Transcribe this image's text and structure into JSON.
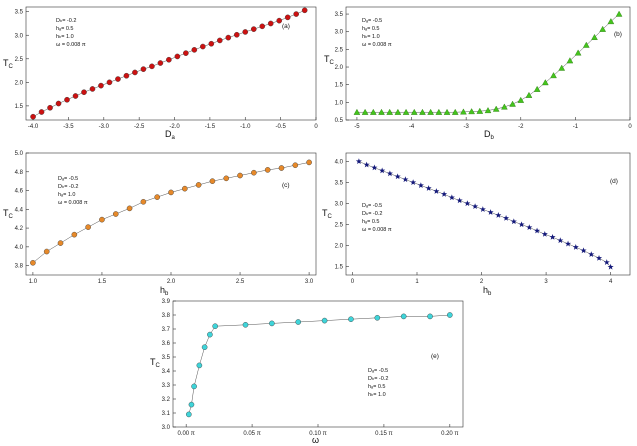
{
  "chart_data": [
    {
      "type": "scatter",
      "panel_label": "(a)",
      "marker": "circle",
      "color": "#cc1111",
      "xlabel": "D",
      "xlabel_sub": "a",
      "ylabel": "T",
      "ylabel_sub": "C",
      "xlim": [
        -4.1,
        0.0
      ],
      "ylim": [
        1.2,
        3.6
      ],
      "xticks": [
        -4.0,
        -3.5,
        -3.0,
        -2.5,
        -2.0,
        -1.5,
        -1.0,
        -0.5,
        0.0
      ],
      "xtick_labels": [
        "-4.0",
        "-3.5",
        "-3.0",
        "-2.5",
        "-2.0",
        "-1.5",
        "-1.0",
        "-0.5",
        "0"
      ],
      "yticks": [
        1.5,
        2.0,
        2.5,
        3.0,
        3.5
      ],
      "ytick_labels": [
        "1.5",
        "2.0",
        "2.5",
        "3.0",
        "3.5"
      ],
      "annotations": [
        "Dₕ= -0.2",
        "hₐ= 0.5",
        "hₕ= 1.0",
        "ω = 0.008 π"
      ],
      "x": [
        -4.0,
        -3.88,
        -3.76,
        -3.64,
        -3.52,
        -3.4,
        -3.28,
        -3.16,
        -3.04,
        -2.92,
        -2.8,
        -2.68,
        -2.56,
        -2.44,
        -2.32,
        -2.2,
        -2.08,
        -1.96,
        -1.84,
        -1.72,
        -1.6,
        -1.48,
        -1.36,
        -1.24,
        -1.12,
        -1.0,
        -0.88,
        -0.76,
        -0.64,
        -0.52,
        -0.4,
        -0.28,
        -0.16
      ],
      "y": [
        1.27,
        1.37,
        1.46,
        1.55,
        1.63,
        1.71,
        1.79,
        1.86,
        1.93,
        2.0,
        2.07,
        2.14,
        2.21,
        2.28,
        2.34,
        2.41,
        2.48,
        2.55,
        2.62,
        2.69,
        2.76,
        2.82,
        2.89,
        2.95,
        3.01,
        3.07,
        3.13,
        3.19,
        3.25,
        3.31,
        3.38,
        3.45,
        3.53
      ]
    },
    {
      "type": "scatter",
      "panel_label": "(b)",
      "marker": "triangle",
      "color": "#44c41c",
      "xlabel": "D",
      "xlabel_sub": "b",
      "ylabel": "T",
      "ylabel_sub": "C",
      "xlim": [
        -5.2,
        0.0
      ],
      "ylim": [
        0.5,
        3.7
      ],
      "xticks": [
        -5,
        -4,
        -3,
        -2,
        -1,
        0
      ],
      "xtick_labels": [
        "-5",
        "-4",
        "-3",
        "-2",
        "-1",
        "0"
      ],
      "yticks": [
        0.5,
        1.0,
        1.5,
        2.0,
        2.5,
        3.0,
        3.5
      ],
      "ytick_labels": [
        "0.5",
        "1.0",
        "1.5",
        "2.0",
        "2.5",
        "3.0",
        "3.5"
      ],
      "annotations": [
        "Dₐ= -0.5",
        "hₐ= 0.5",
        "hₕ= 1.0",
        "ω = 0.008 π"
      ],
      "x": [
        -5.0,
        -4.85,
        -4.7,
        -4.55,
        -4.4,
        -4.25,
        -4.1,
        -3.95,
        -3.8,
        -3.65,
        -3.5,
        -3.35,
        -3.2,
        -3.05,
        -2.9,
        -2.75,
        -2.6,
        -2.45,
        -2.3,
        -2.15,
        -2.0,
        -1.85,
        -1.7,
        -1.55,
        -1.4,
        -1.25,
        -1.1,
        -0.95,
        -0.8,
        -0.65,
        -0.5,
        -0.35,
        -0.2
      ],
      "y": [
        0.72,
        0.72,
        0.72,
        0.72,
        0.72,
        0.72,
        0.72,
        0.72,
        0.72,
        0.72,
        0.72,
        0.72,
        0.72,
        0.73,
        0.74,
        0.75,
        0.77,
        0.81,
        0.87,
        0.95,
        1.06,
        1.2,
        1.37,
        1.56,
        1.76,
        1.97,
        2.18,
        2.4,
        2.62,
        2.84,
        3.07,
        3.29,
        3.5
      ]
    },
    {
      "type": "scatter",
      "panel_label": "(c)",
      "marker": "circle",
      "color": "#e6892a",
      "xlabel": "h",
      "xlabel_sub": "b",
      "ylabel": "T",
      "ylabel_sub": "C",
      "xlim": [
        0.95,
        3.05
      ],
      "ylim": [
        3.7,
        5.0
      ],
      "xticks": [
        1.0,
        1.5,
        2.0,
        2.5,
        3.0
      ],
      "xtick_labels": [
        "1.0",
        "1.5",
        "2.0",
        "2.5",
        "3.0"
      ],
      "yticks": [
        3.8,
        4.0,
        4.2,
        4.4,
        4.6,
        4.8,
        5.0
      ],
      "ytick_labels": [
        "3.8",
        "4.0",
        "4.2",
        "4.4",
        "4.6",
        "4.8",
        "5.0"
      ],
      "annotations": [
        "Dₐ= -0.5",
        "Dₕ= -0.2",
        "hₐ= 1.0",
        "ω = 0.008 π"
      ],
      "x": [
        1.0,
        1.1,
        1.2,
        1.3,
        1.4,
        1.5,
        1.6,
        1.7,
        1.8,
        1.9,
        2.0,
        2.1,
        2.2,
        2.3,
        2.4,
        2.5,
        2.6,
        2.7,
        2.8,
        2.9,
        3.0
      ],
      "y": [
        3.83,
        3.95,
        4.04,
        4.13,
        4.21,
        4.29,
        4.35,
        4.41,
        4.48,
        4.53,
        4.58,
        4.62,
        4.66,
        4.7,
        4.73,
        4.76,
        4.79,
        4.82,
        4.84,
        4.87,
        4.9
      ]
    },
    {
      "type": "scatter",
      "panel_label": "(d)",
      "marker": "star",
      "color": "#14197a",
      "xlabel": "h",
      "xlabel_sub": "b",
      "ylabel": "T",
      "ylabel_sub": "C",
      "xlim": [
        -0.1,
        4.3
      ],
      "ylim": [
        1.3,
        4.2
      ],
      "xticks": [
        0,
        1,
        2,
        3,
        4
      ],
      "xtick_labels": [
        "0",
        "1",
        "2",
        "3",
        "4"
      ],
      "yticks": [
        1.5,
        2.0,
        2.5,
        3.0,
        3.5,
        4.0
      ],
      "ytick_labels": [
        "1.5",
        "2.0",
        "2.5",
        "3.0",
        "3.5",
        "4.0"
      ],
      "annotations": [
        "Dₐ= -0.5",
        "Dₕ= -0.2",
        "hₐ= 0.5",
        "ω = 0.008 π"
      ],
      "x": [
        0.1,
        0.22,
        0.34,
        0.46,
        0.58,
        0.7,
        0.82,
        0.94,
        1.06,
        1.18,
        1.3,
        1.42,
        1.54,
        1.66,
        1.78,
        1.9,
        2.02,
        2.14,
        2.26,
        2.38,
        2.5,
        2.62,
        2.74,
        2.86,
        2.98,
        3.1,
        3.22,
        3.34,
        3.46,
        3.58,
        3.7,
        3.82,
        3.94,
        4.0
      ],
      "y": [
        4.0,
        3.92,
        3.85,
        3.78,
        3.71,
        3.64,
        3.57,
        3.5,
        3.43,
        3.36,
        3.29,
        3.22,
        3.14,
        3.07,
        3.0,
        2.93,
        2.86,
        2.79,
        2.72,
        2.65,
        2.57,
        2.5,
        2.43,
        2.35,
        2.27,
        2.2,
        2.12,
        2.04,
        1.96,
        1.88,
        1.79,
        1.7,
        1.6,
        1.49
      ]
    },
    {
      "type": "line",
      "panel_label": "(e)",
      "marker": "circle",
      "color": "#3fd4d9",
      "xlabel": "ω",
      "xlabel_sub": "",
      "ylabel": "T",
      "ylabel_sub": "C",
      "xlim": [
        -0.01,
        0.21
      ],
      "ylim": [
        3.0,
        3.9
      ],
      "xticks": [
        0.0,
        0.05,
        0.1,
        0.15,
        0.2
      ],
      "xtick_labels": [
        "0.00 π",
        "0.05 π",
        "0.10 π",
        "0.15 π",
        "0.20 π"
      ],
      "yticks": [
        3.0,
        3.1,
        3.2,
        3.3,
        3.4,
        3.5,
        3.6,
        3.7,
        3.8,
        3.9
      ],
      "ytick_labels": [
        "3.0",
        "3.1",
        "3.2",
        "3.3",
        "3.4",
        "3.5",
        "3.6",
        "3.7",
        "3.8",
        "3.9"
      ],
      "annotations": [
        "Dₐ= -0.5",
        "Dₕ= -0.2",
        "hₐ= 0.5",
        "hₕ= 1.0"
      ],
      "x": [
        0.002,
        0.004,
        0.006,
        0.01,
        0.014,
        0.018,
        0.022,
        0.045,
        0.065,
        0.085,
        0.105,
        0.125,
        0.145,
        0.165,
        0.185,
        0.2
      ],
      "y": [
        3.09,
        3.16,
        3.29,
        3.44,
        3.57,
        3.66,
        3.72,
        3.73,
        3.74,
        3.75,
        3.76,
        3.77,
        3.78,
        3.79,
        3.79,
        3.8
      ]
    }
  ]
}
